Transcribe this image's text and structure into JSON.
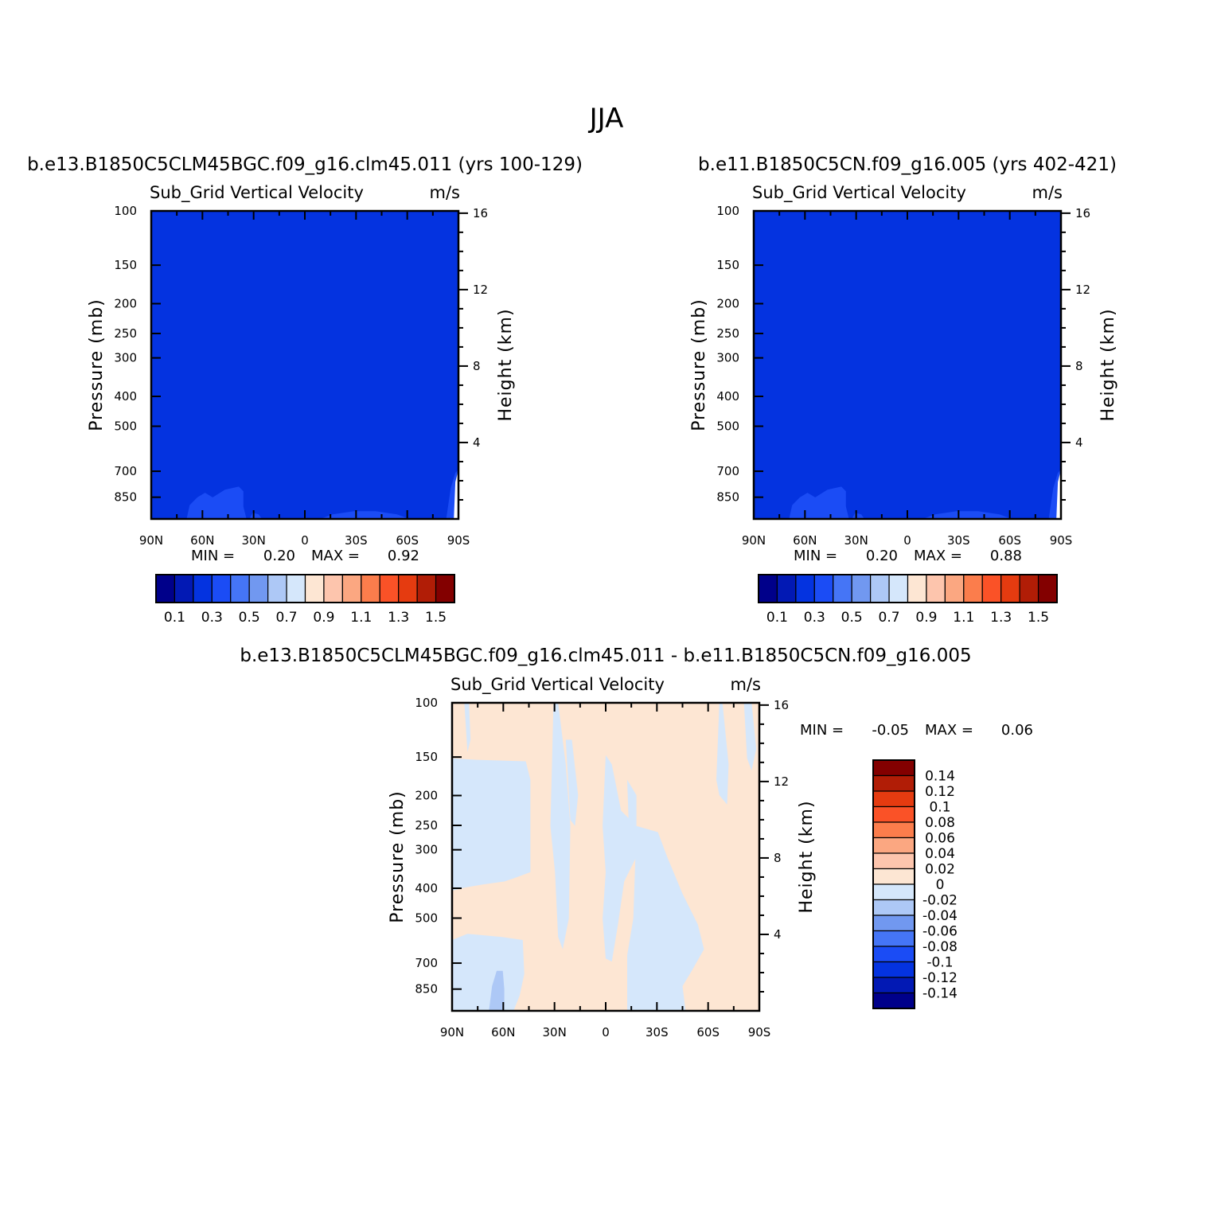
{
  "figure": {
    "title": "JJA"
  },
  "chart_data": [
    {
      "type": "heatmap",
      "title": "b.e13.B1850C5CLM45BGC.f09_g16.clm45.011 (yrs 100-129)",
      "left_string": "Sub_Grid Vertical Velocity",
      "units": "m/s",
      "x_tick_labels": [
        "90N",
        "60N",
        "30N",
        "0",
        "30S",
        "60S",
        "90S"
      ],
      "y_tick_labels": [
        "100",
        "150",
        "200",
        "250",
        "300",
        "400",
        "500",
        "700",
        "850"
      ],
      "y_ticks": [
        100,
        150,
        200,
        250,
        300,
        400,
        500,
        700,
        850
      ],
      "height_tick_labels": [
        "16",
        "12",
        "8",
        "4"
      ],
      "ylabel": "Pressure (mb)",
      "ylabel_right": "Height (km)",
      "ylim": [
        1000,
        100
      ],
      "xlim": [
        90,
        -90
      ],
      "min_label": "MIN =",
      "min_value": "0.20",
      "max_label": "MAX =",
      "max_value": "0.92",
      "levels": [
        "0.1",
        "0.3",
        "0.5",
        "0.7",
        "0.9",
        "1.1",
        "1.3",
        "1.5"
      ],
      "colors": [
        "#00008a",
        "#0219b4",
        "#0433e0",
        "#1b4cf5",
        "#4575f6",
        "#7198f0",
        "#adc8f6",
        "#d5e7fb",
        "#fde6d3",
        "#fdc5ad",
        "#fba781",
        "#fb7d4c",
        "#fa5227",
        "#e53b10",
        "#b11d06",
        "#830000"
      ],
      "background_color": "#0433e0",
      "feature_color": "#1b4cf5"
    },
    {
      "type": "heatmap",
      "title": "b.e11.B1850C5CN.f09_g16.005 (yrs 402-421)",
      "left_string": "Sub_Grid Vertical Velocity",
      "units": "m/s",
      "x_tick_labels": [
        "90N",
        "60N",
        "30N",
        "0",
        "30S",
        "60S",
        "90S"
      ],
      "y_tick_labels": [
        "100",
        "150",
        "200",
        "250",
        "300",
        "400",
        "500",
        "700",
        "850"
      ],
      "y_ticks": [
        100,
        150,
        200,
        250,
        300,
        400,
        500,
        700,
        850
      ],
      "height_tick_labels": [
        "16",
        "12",
        "8",
        "4"
      ],
      "ylabel": "Pressure (mb)",
      "ylabel_right": "Height (km)",
      "ylim": [
        1000,
        100
      ],
      "xlim": [
        90,
        -90
      ],
      "min_label": "MIN =",
      "min_value": "0.20",
      "max_label": "MAX =",
      "max_value": "0.88",
      "levels": [
        "0.1",
        "0.3",
        "0.5",
        "0.7",
        "0.9",
        "1.1",
        "1.3",
        "1.5"
      ],
      "colors": [
        "#00008a",
        "#0219b4",
        "#0433e0",
        "#1b4cf5",
        "#4575f6",
        "#7198f0",
        "#adc8f6",
        "#d5e7fb",
        "#fde6d3",
        "#fdc5ad",
        "#fba781",
        "#fb7d4c",
        "#fa5227",
        "#e53b10",
        "#b11d06",
        "#830000"
      ],
      "background_color": "#0433e0",
      "feature_color": "#1b4cf5"
    },
    {
      "type": "heatmap",
      "title": "b.e13.B1850C5CLM45BGC.f09_g16.clm45.011 - b.e11.B1850C5CN.f09_g16.005",
      "left_string": "Sub_Grid Vertical Velocity",
      "units": "m/s",
      "x_tick_labels": [
        "90N",
        "60N",
        "30N",
        "0",
        "30S",
        "60S",
        "90S"
      ],
      "y_tick_labels": [
        "100",
        "150",
        "200",
        "250",
        "300",
        "400",
        "500",
        "700",
        "850"
      ],
      "y_ticks": [
        100,
        150,
        200,
        250,
        300,
        400,
        500,
        700,
        850
      ],
      "height_tick_labels": [
        "16",
        "12",
        "8",
        "4"
      ],
      "ylabel": "Pressure (mb)",
      "ylabel_right": "Height (km)",
      "ylim": [
        1000,
        100
      ],
      "xlim": [
        90,
        -90
      ],
      "min_label": "MIN =",
      "min_value": "-0.05",
      "max_label": "MAX =",
      "max_value": "0.06",
      "levels": [
        "0.14",
        "0.12",
        "0.1",
        "0.08",
        "0.06",
        "0.04",
        "0.02",
        "0",
        "-0.02",
        "-0.04",
        "-0.06",
        "-0.08",
        "-0.1",
        "-0.12",
        "-0.14"
      ],
      "colors": [
        "#830000",
        "#b11d06",
        "#e53b10",
        "#fa5227",
        "#fb7d4c",
        "#fba781",
        "#fdc5ad",
        "#fde6d3",
        "#d5e7fb",
        "#adc8f6",
        "#7198f0",
        "#4575f6",
        "#1b4cf5",
        "#0433e0",
        "#0219b4",
        "#00008a"
      ],
      "background_color": "#fde6d3",
      "negative_color": "#d5e7fb",
      "feature_color": "#adc8f6"
    }
  ]
}
